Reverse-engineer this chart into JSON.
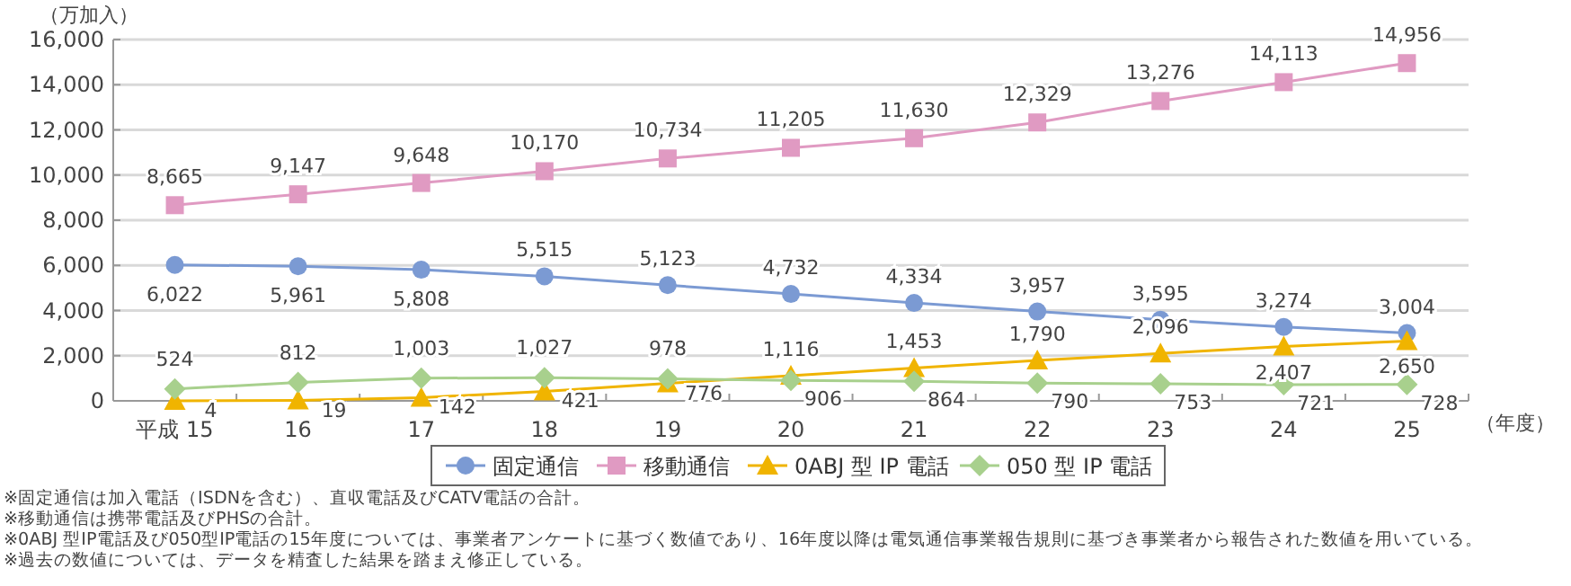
{
  "chart_data": {
    "type": "line",
    "ylabel": "（万加入）",
    "xlabel": "（年度）",
    "categories": [
      "平成 15",
      "16",
      "17",
      "18",
      "19",
      "20",
      "21",
      "22",
      "23",
      "24",
      "25"
    ],
    "series": [
      {
        "name": "固定通信",
        "color": "#7b9ad3",
        "marker": "circle",
        "values": [
          6022,
          5961,
          5808,
          5515,
          5123,
          4732,
          4334,
          3957,
          3595,
          3274,
          3004
        ],
        "value_labels": [
          "6,022",
          "5,961",
          "5,808",
          "5,515",
          "5,123",
          "4,732",
          "4,334",
          "3,957",
          "3,595",
          "3,274",
          "3,004"
        ]
      },
      {
        "name": "移動通信",
        "color": "#e09ac2",
        "marker": "square",
        "values": [
          8665,
          9147,
          9648,
          10170,
          10734,
          11205,
          11630,
          12329,
          13276,
          14113,
          14956
        ],
        "value_labels": [
          "8,665",
          "9,147",
          "9,648",
          "10,170",
          "10,734",
          "11,205",
          "11,630",
          "12,329",
          "13,276",
          "14,113",
          "14,956"
        ]
      },
      {
        "name": "0ABJ 型 IP 電話",
        "color": "#f0b400",
        "marker": "triangle",
        "values": [
          4,
          19,
          142,
          421,
          776,
          1116,
          1453,
          1790,
          2096,
          2407,
          2650
        ],
        "value_labels": [
          "4",
          "19",
          "142",
          "421",
          "776",
          "1,116",
          "1,453",
          "1,790",
          "2,096",
          "2,407",
          "2,650"
        ]
      },
      {
        "name": "050 型 IP 電話",
        "color": "#a8d08d",
        "marker": "diamond",
        "values": [
          524,
          812,
          1003,
          1027,
          978,
          906,
          864,
          790,
          753,
          721,
          728
        ],
        "value_labels": [
          "524",
          "812",
          "1,003",
          "1,027",
          "978",
          "906",
          "864",
          "790",
          "753",
          "721",
          "728"
        ]
      }
    ],
    "ylim": [
      0,
      16000
    ],
    "yticks": [
      {
        "value": 0,
        "label": "0"
      },
      {
        "value": 2000,
        "label": "2,000"
      },
      {
        "value": 4000,
        "label": "4,000"
      },
      {
        "value": 6000,
        "label": "6,000"
      },
      {
        "value": 8000,
        "label": "8,000"
      },
      {
        "value": 10000,
        "label": "10,000"
      },
      {
        "value": 12000,
        "label": "12,000"
      },
      {
        "value": 14000,
        "label": "14,000"
      },
      {
        "value": 16000,
        "label": "16,000"
      }
    ],
    "grid": "y",
    "legend": "bottom",
    "annotations": [
      "※固定通信は加入電話（ISDNを含む）、直収電話及びCATV電話の合計。",
      "※移動通信は携帯電話及びPHSの合計。",
      "※0ABJ 型IP電話及び050型IP電話の15年度については、事業者アンケートに基づく数値であり、16年度以降は電気通信事業報告規則に基づき事業者から報告された数値を用いている。",
      "※過去の数値については、データを精査した結果を踏まえ修正している。"
    ]
  }
}
